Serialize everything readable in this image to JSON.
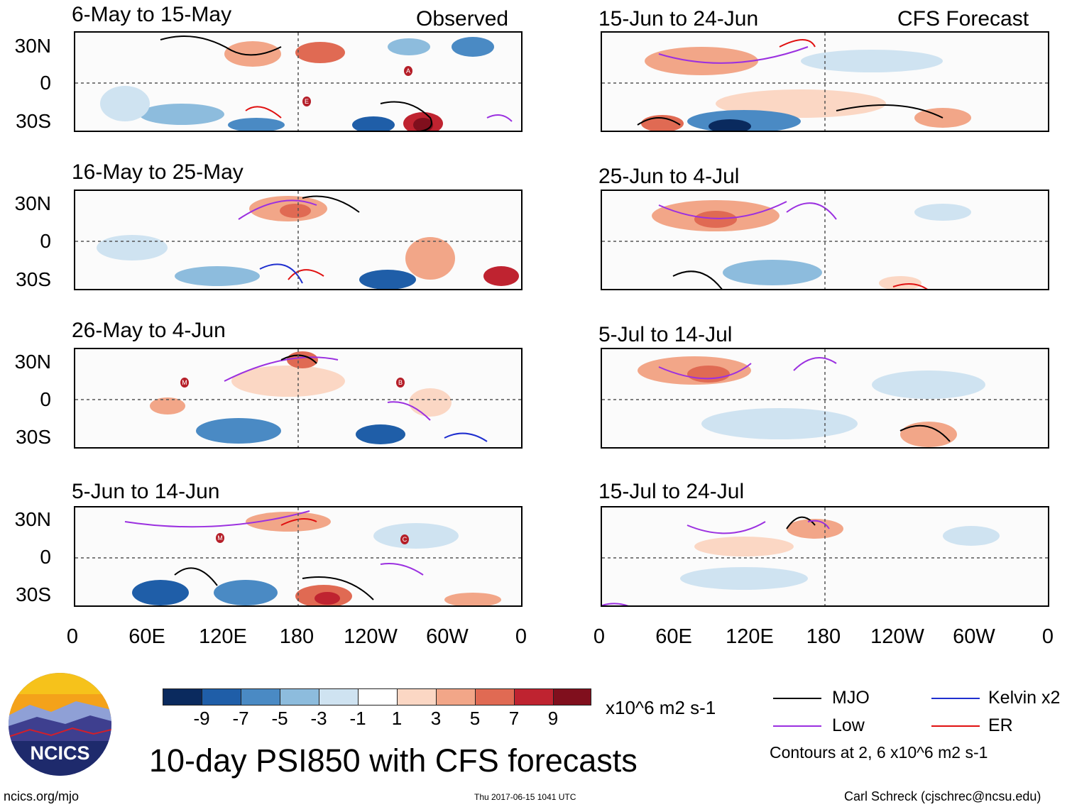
{
  "figure_title": "10-day PSI850 with CFS forecasts",
  "left_column_label": "Observed",
  "right_column_label": "CFS Forecast",
  "panels_left": [
    {
      "title": "6-May to 15-May"
    },
    {
      "title": "16-May to 25-May"
    },
    {
      "title": "26-May to 4-Jun"
    },
    {
      "title": "5-Jun to 14-Jun"
    }
  ],
  "panels_right": [
    {
      "title": "15-Jun to 24-Jun"
    },
    {
      "title": "25-Jun to 4-Jul"
    },
    {
      "title": "5-Jul to 14-Jul"
    },
    {
      "title": "15-Jul to 24-Jul"
    }
  ],
  "y_ticks": [
    "30N",
    "0",
    "30S"
  ],
  "x_ticks": [
    "0",
    "60E",
    "120E",
    "180",
    "120W",
    "60W",
    "0"
  ],
  "colorbar": {
    "colors": [
      "#0a2a5e",
      "#1f5ea8",
      "#4a8ac4",
      "#8dbcdd",
      "#cfe3f1",
      "#ffffff",
      "#fbd7c4",
      "#f2a688",
      "#e06a53",
      "#bf2330",
      "#800f1d"
    ],
    "labels": [
      "-9",
      "-7",
      "-5",
      "-3",
      "-1",
      "1",
      "3",
      "5",
      "7",
      "9"
    ],
    "units": "x10^6 m2 s-1"
  },
  "legend": {
    "items": [
      {
        "label": "MJO",
        "color": "#000000"
      },
      {
        "label": "Kelvin x2",
        "color": "#1f2fcf"
      },
      {
        "label": "Low",
        "color": "#9b30e0"
      },
      {
        "label": "ER",
        "color": "#e01010"
      }
    ],
    "note": "Contours at 2, 6 x10^6 m2 s-1"
  },
  "logo_text": "NCICS",
  "footer": {
    "left": "ncics.org/mjo",
    "center": "Thu 2017-06-15 1041 UTC",
    "right": "Carl Schreck (cjschrec@ncsu.edu)"
  },
  "storm_markers": [
    "A",
    "E",
    "M",
    "B",
    "M",
    "C"
  ]
}
